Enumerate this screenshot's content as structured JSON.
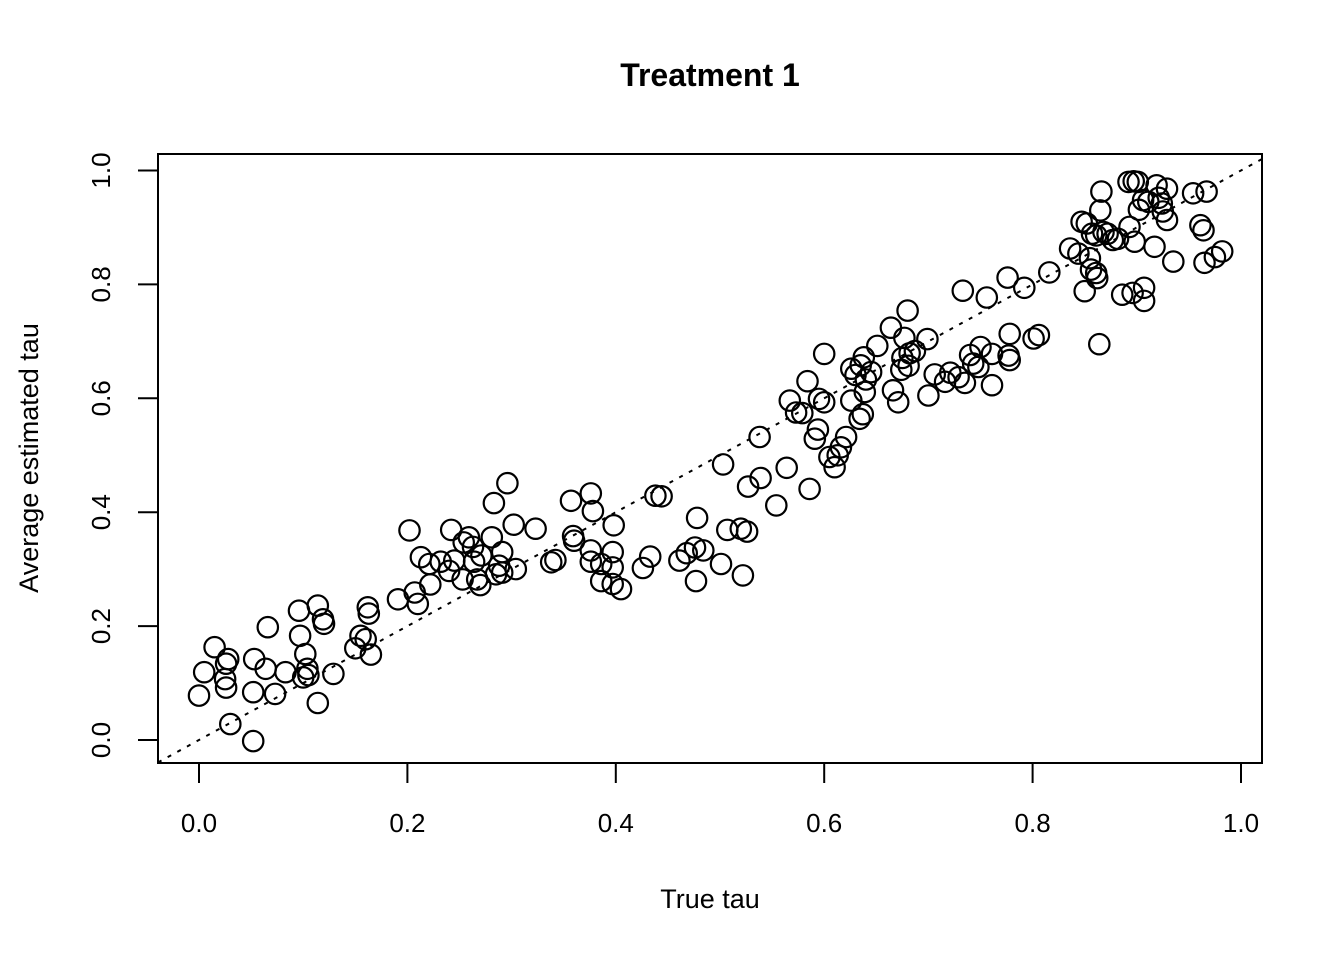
{
  "title": "Treatment 1",
  "axes": {
    "xlabel": "True tau",
    "ylabel": "Average estimated tau",
    "x_tick_labels": [
      "0.0",
      "0.2",
      "0.4",
      "0.6",
      "0.8",
      "1.0"
    ],
    "y_tick_labels": [
      "0.0",
      "0.2",
      "0.4",
      "0.6",
      "0.8",
      "1.0"
    ],
    "x_tick_values": [
      0.0,
      0.2,
      0.4,
      0.6,
      0.8,
      1.0
    ],
    "y_tick_values": [
      0.0,
      0.2,
      0.4,
      0.6,
      0.8,
      1.0
    ]
  },
  "colors": {
    "background": "#ffffff",
    "foreground": "#000000"
  },
  "chart_data": {
    "type": "scatter",
    "title": "Treatment 1",
    "xlabel": "True tau",
    "ylabel": "Average estimated tau",
    "xlim": [
      -0.04,
      1.02
    ],
    "ylim": [
      -0.04,
      1.03
    ],
    "grid": false,
    "legend": "none",
    "marker": {
      "shape": "open-circle",
      "stroke": "#000000",
      "fill": "none"
    },
    "reference_line": {
      "type": "identity",
      "slope": 1,
      "intercept": 0,
      "style": "dotted",
      "color": "#000000"
    },
    "points": [
      [
        0.015,
        0.163
      ],
      [
        0.028,
        0.142
      ],
      [
        0.026,
        0.134
      ],
      [
        0.005,
        0.119
      ],
      [
        0.025,
        0.107
      ],
      [
        0.026,
        0.092
      ],
      [
        0.0,
        0.078
      ],
      [
        0.03,
        0.028
      ],
      [
        0.052,
        -0.002
      ],
      [
        0.066,
        0.198
      ],
      [
        0.053,
        0.142
      ],
      [
        0.064,
        0.125
      ],
      [
        0.052,
        0.084
      ],
      [
        0.073,
        0.081
      ],
      [
        0.083,
        0.119
      ],
      [
        0.096,
        0.227
      ],
      [
        0.097,
        0.183
      ],
      [
        0.102,
        0.151
      ],
      [
        0.104,
        0.125
      ],
      [
        0.105,
        0.114
      ],
      [
        0.1,
        0.11
      ],
      [
        0.114,
        0.236
      ],
      [
        0.119,
        0.212
      ],
      [
        0.12,
        0.204
      ],
      [
        0.114,
        0.065
      ],
      [
        0.129,
        0.116
      ],
      [
        0.15,
        0.161
      ],
      [
        0.155,
        0.183
      ],
      [
        0.16,
        0.177
      ],
      [
        0.162,
        0.233
      ],
      [
        0.163,
        0.222
      ],
      [
        0.165,
        0.15
      ],
      [
        0.191,
        0.247
      ],
      [
        0.202,
        0.368
      ],
      [
        0.207,
        0.259
      ],
      [
        0.21,
        0.239
      ],
      [
        0.213,
        0.321
      ],
      [
        0.221,
        0.309
      ],
      [
        0.222,
        0.273
      ],
      [
        0.232,
        0.313
      ],
      [
        0.24,
        0.297
      ],
      [
        0.242,
        0.369
      ],
      [
        0.245,
        0.315
      ],
      [
        0.253,
        0.282
      ],
      [
        0.254,
        0.347
      ],
      [
        0.259,
        0.356
      ],
      [
        0.263,
        0.339
      ],
      [
        0.264,
        0.313
      ],
      [
        0.267,
        0.282
      ],
      [
        0.27,
        0.272
      ],
      [
        0.271,
        0.324
      ],
      [
        0.281,
        0.356
      ],
      [
        0.283,
        0.416
      ],
      [
        0.285,
        0.291
      ],
      [
        0.288,
        0.306
      ],
      [
        0.291,
        0.294
      ],
      [
        0.291,
        0.33
      ],
      [
        0.296,
        0.451
      ],
      [
        0.302,
        0.378
      ],
      [
        0.304,
        0.3
      ],
      [
        0.323,
        0.371
      ],
      [
        0.338,
        0.312
      ],
      [
        0.342,
        0.316
      ],
      [
        0.357,
        0.42
      ],
      [
        0.359,
        0.358
      ],
      [
        0.36,
        0.35
      ],
      [
        0.376,
        0.313
      ],
      [
        0.376,
        0.333
      ],
      [
        0.376,
        0.433
      ],
      [
        0.378,
        0.402
      ],
      [
        0.386,
        0.279
      ],
      [
        0.386,
        0.309
      ],
      [
        0.397,
        0.274
      ],
      [
        0.397,
        0.303
      ],
      [
        0.397,
        0.33
      ],
      [
        0.398,
        0.377
      ],
      [
        0.405,
        0.265
      ],
      [
        0.426,
        0.302
      ],
      [
        0.433,
        0.322
      ],
      [
        0.438,
        0.429
      ],
      [
        0.444,
        0.428
      ],
      [
        0.461,
        0.315
      ],
      [
        0.468,
        0.328
      ],
      [
        0.476,
        0.338
      ],
      [
        0.484,
        0.333
      ],
      [
        0.477,
        0.279
      ],
      [
        0.478,
        0.39
      ],
      [
        0.501,
        0.309
      ],
      [
        0.522,
        0.289
      ],
      [
        0.503,
        0.484
      ],
      [
        0.507,
        0.369
      ],
      [
        0.52,
        0.371
      ],
      [
        0.526,
        0.366
      ],
      [
        0.527,
        0.445
      ],
      [
        0.538,
        0.532
      ],
      [
        0.539,
        0.46
      ],
      [
        0.554,
        0.412
      ],
      [
        0.564,
        0.478
      ],
      [
        0.567,
        0.596
      ],
      [
        0.573,
        0.575
      ],
      [
        0.579,
        0.574
      ],
      [
        0.584,
        0.63
      ],
      [
        0.586,
        0.441
      ],
      [
        0.591,
        0.529
      ],
      [
        0.594,
        0.545
      ],
      [
        0.595,
        0.599
      ],
      [
        0.6,
        0.593
      ],
      [
        0.6,
        0.678
      ],
      [
        0.605,
        0.497
      ],
      [
        0.61,
        0.479
      ],
      [
        0.613,
        0.5
      ],
      [
        0.616,
        0.514
      ],
      [
        0.621,
        0.532
      ],
      [
        0.626,
        0.596
      ],
      [
        0.626,
        0.652
      ],
      [
        0.63,
        0.641
      ],
      [
        0.635,
        0.658
      ],
      [
        0.645,
        0.646
      ],
      [
        0.64,
        0.633
      ],
      [
        0.634,
        0.564
      ],
      [
        0.637,
        0.572
      ],
      [
        0.638,
        0.672
      ],
      [
        0.639,
        0.611
      ],
      [
        0.651,
        0.692
      ],
      [
        0.664,
        0.724
      ],
      [
        0.666,
        0.614
      ],
      [
        0.671,
        0.593
      ],
      [
        0.674,
        0.65
      ],
      [
        0.675,
        0.671
      ],
      [
        0.677,
        0.706
      ],
      [
        0.68,
        0.754
      ],
      [
        0.681,
        0.657
      ],
      [
        0.682,
        0.679
      ],
      [
        0.687,
        0.683
      ],
      [
        0.699,
        0.704
      ],
      [
        0.7,
        0.605
      ],
      [
        0.706,
        0.642
      ],
      [
        0.716,
        0.629
      ],
      [
        0.721,
        0.645
      ],
      [
        0.729,
        0.637
      ],
      [
        0.735,
        0.627
      ],
      [
        0.733,
        0.789
      ],
      [
        0.74,
        0.676
      ],
      [
        0.743,
        0.661
      ],
      [
        0.748,
        0.655
      ],
      [
        0.75,
        0.69
      ],
      [
        0.756,
        0.777
      ],
      [
        0.761,
        0.623
      ],
      [
        0.761,
        0.678
      ],
      [
        0.777,
        0.675
      ],
      [
        0.778,
        0.667
      ],
      [
        0.778,
        0.713
      ],
      [
        0.776,
        0.812
      ],
      [
        0.792,
        0.794
      ],
      [
        0.801,
        0.705
      ],
      [
        0.806,
        0.711
      ],
      [
        0.816,
        0.821
      ],
      [
        0.836,
        0.863
      ],
      [
        0.844,
        0.854
      ],
      [
        0.847,
        0.91
      ],
      [
        0.85,
        0.788
      ],
      [
        0.852,
        0.907
      ],
      [
        0.855,
        0.846
      ],
      [
        0.856,
        0.826
      ],
      [
        0.861,
        0.82
      ],
      [
        0.862,
        0.811
      ],
      [
        0.864,
        0.695
      ],
      [
        0.865,
        0.93
      ],
      [
        0.866,
        0.963
      ],
      [
        0.857,
        0.889
      ],
      [
        0.861,
        0.886
      ],
      [
        0.868,
        0.892
      ],
      [
        0.872,
        0.889
      ],
      [
        0.877,
        0.878
      ],
      [
        0.882,
        0.88
      ],
      [
        0.886,
        0.782
      ],
      [
        0.892,
        0.98
      ],
      [
        0.893,
        0.901
      ],
      [
        0.896,
        0.785
      ],
      [
        0.897,
        0.981
      ],
      [
        0.898,
        0.875
      ],
      [
        0.901,
        0.98
      ],
      [
        0.902,
        0.931
      ],
      [
        0.906,
        0.948
      ],
      [
        0.907,
        0.771
      ],
      [
        0.907,
        0.794
      ],
      [
        0.911,
        0.945
      ],
      [
        0.917,
        0.866
      ],
      [
        0.919,
        0.974
      ],
      [
        0.921,
        0.952
      ],
      [
        0.924,
        0.942
      ],
      [
        0.925,
        0.928
      ],
      [
        0.929,
        0.913
      ],
      [
        0.929,
        0.968
      ],
      [
        0.935,
        0.84
      ],
      [
        0.954,
        0.96
      ],
      [
        0.961,
        0.904
      ],
      [
        0.964,
        0.895
      ],
      [
        0.965,
        0.838
      ],
      [
        0.967,
        0.963
      ],
      [
        0.975,
        0.848
      ],
      [
        0.982,
        0.858
      ]
    ]
  }
}
